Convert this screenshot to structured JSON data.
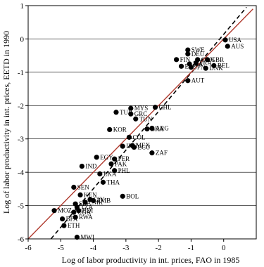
{
  "chart_data": {
    "type": "scatter",
    "title": "",
    "xlabel": "Log of labor productivity in int. prices, FAO in 1985",
    "ylabel": "Log of labor productivity in int. prices, EETD in 1990",
    "xlim": [
      -6,
      1
    ],
    "ylim": [
      -6,
      1
    ],
    "x_ticks": [
      -6,
      -5,
      -4,
      -3,
      -2,
      -1,
      0
    ],
    "y_ticks": [
      -6,
      -5,
      -4,
      -3,
      -2,
      -1,
      0,
      1
    ],
    "x_tick_labels": [
      "-6",
      "-5",
      "-4",
      "-3",
      "-2",
      "-1",
      "0"
    ],
    "y_tick_labels": [
      "-6",
      "-5",
      "-4",
      "-3",
      "-2",
      "-1",
      "0",
      "1"
    ],
    "grid": "horizontal",
    "lines": [
      {
        "kind": "dashed",
        "color": "#000000",
        "x": [
          -5.3,
          0.7
        ],
        "y": [
          -6.0,
          0.95
        ]
      },
      {
        "kind": "solid",
        "color": "#b03a2e",
        "x": [
          -6.0,
          0.9
        ],
        "y": [
          -6.0,
          0.9
        ]
      }
    ],
    "points": [
      {
        "label": "USA",
        "x": 0.05,
        "y": -0.03
      },
      {
        "label": "AUS",
        "x": 0.12,
        "y": -0.22
      },
      {
        "label": "SWE",
        "x": -1.1,
        "y": -0.33
      },
      {
        "label": "DEU",
        "x": -1.1,
        "y": -0.45
      },
      {
        "label": "FIN",
        "x": -1.45,
        "y": -0.62
      },
      {
        "label": "GBR",
        "x": -0.5,
        "y": -0.62
      },
      {
        "label": "CAN",
        "x": -0.8,
        "y": -0.62
      },
      {
        "label": "FRA",
        "x": -0.85,
        "y": -0.72
      },
      {
        "label": "ITA",
        "x": -1.05,
        "y": -0.75
      },
      {
        "label": "ESP",
        "x": -1.3,
        "y": -0.82
      },
      {
        "label": "JPN",
        "x": -1.0,
        "y": -0.85
      },
      {
        "label": "BEL",
        "x": -0.3,
        "y": -0.8
      },
      {
        "label": "DNK",
        "x": -0.55,
        "y": -0.88
      },
      {
        "label": "AUT",
        "x": -1.1,
        "y": -1.25
      },
      {
        "label": "CHL",
        "x": -2.1,
        "y": -2.05
      },
      {
        "label": "MYS",
        "x": -2.85,
        "y": -2.08
      },
      {
        "label": "TUR",
        "x": -3.3,
        "y": -2.2
      },
      {
        "label": "GRC",
        "x": -2.85,
        "y": -2.25
      },
      {
        "label": "TUN",
        "x": -2.7,
        "y": -2.4
      },
      {
        "label": "ARG",
        "x": -2.2,
        "y": -2.68
      },
      {
        "label": "BRA",
        "x": -2.35,
        "y": -2.7
      },
      {
        "label": "KOR",
        "x": -3.5,
        "y": -2.72
      },
      {
        "label": "COL",
        "x": -2.9,
        "y": -2.95
      },
      {
        "label": "MEX",
        "x": -2.8,
        "y": -3.2
      },
      {
        "label": "IRN",
        "x": -3.1,
        "y": -3.22
      },
      {
        "label": "ECU",
        "x": -2.75,
        "y": -3.25
      },
      {
        "label": "ZAF",
        "x": -2.2,
        "y": -3.42
      },
      {
        "label": "EGY",
        "x": -3.9,
        "y": -3.55
      },
      {
        "label": "PER",
        "x": -3.35,
        "y": -3.6
      },
      {
        "label": "PAK",
        "x": -3.45,
        "y": -3.75
      },
      {
        "label": "IND",
        "x": -4.35,
        "y": -3.82
      },
      {
        "label": "PHL",
        "x": -3.35,
        "y": -3.95
      },
      {
        "label": "LKA",
        "x": -3.8,
        "y": -4.05
      },
      {
        "label": "THA",
        "x": -3.7,
        "y": -4.3
      },
      {
        "label": "SEN",
        "x": -4.6,
        "y": -4.45
      },
      {
        "label": "KEN",
        "x": -4.4,
        "y": -4.68
      },
      {
        "label": "BOL",
        "x": -3.1,
        "y": -4.72
      },
      {
        "label": "CIV",
        "x": -4.1,
        "y": -4.82
      },
      {
        "label": "ZMB",
        "x": -4.0,
        "y": -4.85
      },
      {
        "label": "CMR",
        "x": -4.25,
        "y": -4.9
      },
      {
        "label": "SLE",
        "x": -4.55,
        "y": -4.95
      },
      {
        "label": "MOZ",
        "x": -5.2,
        "y": -5.15
      },
      {
        "label": "TZA",
        "x": -4.5,
        "y": -5.05
      },
      {
        "label": "BDI",
        "x": -4.45,
        "y": -5.15
      },
      {
        "label": "UGA",
        "x": -4.6,
        "y": -5.2
      },
      {
        "label": "RWA",
        "x": -4.55,
        "y": -5.35
      },
      {
        "label": "BFA",
        "x": -4.95,
        "y": -5.4
      },
      {
        "label": "ETH",
        "x": -4.9,
        "y": -5.6
      },
      {
        "label": "MWI",
        "x": -4.5,
        "y": -5.95
      }
    ]
  }
}
